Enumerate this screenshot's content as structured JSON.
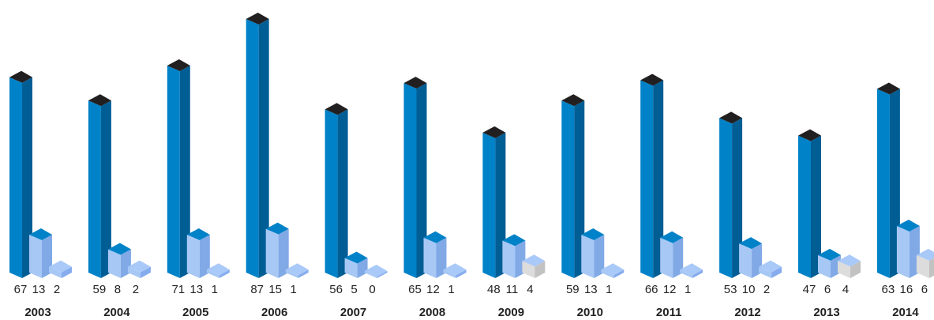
{
  "chart_data": {
    "type": "bar",
    "style": "3d-isometric-columns",
    "grid": false,
    "legend": "none",
    "categories": [
      "2003",
      "2004",
      "2005",
      "2006",
      "2007",
      "2008",
      "2009",
      "2010",
      "2011",
      "2012",
      "2013",
      "2014"
    ],
    "series": [
      {
        "values": [
          67,
          59,
          71,
          87,
          56,
          65,
          48,
          59,
          66,
          53,
          47,
          63
        ]
      },
      {
        "values": [
          13,
          8,
          13,
          15,
          5,
          12,
          11,
          13,
          12,
          10,
          6,
          16
        ]
      },
      {
        "values": [
          2,
          2,
          1,
          1,
          0,
          1,
          4,
          1,
          1,
          2,
          4,
          6
        ]
      }
    ],
    "colors": {
      "series1_front": "#0082c8",
      "series1_side": "#005e95",
      "series1_top": "#221f20",
      "series2_front": "#a7c8f5",
      "series2_side": "#80a9e6",
      "series2_top": "#0082c8",
      "series3_front": "#a7c8f5",
      "series3_side": "#86acee",
      "series3_top": "#a9c9f8",
      "series3_tall_front": "#dcdcdc",
      "series3_tall_side": "#c2c2c2"
    }
  }
}
